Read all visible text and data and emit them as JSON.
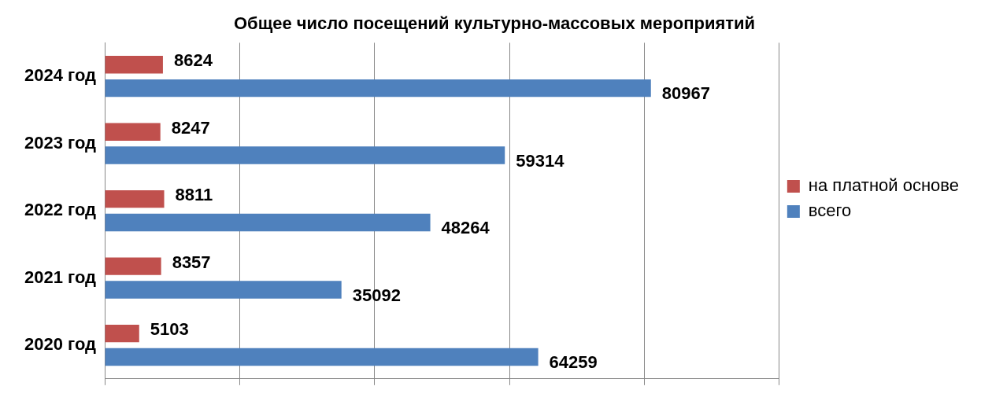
{
  "chart_data": {
    "type": "bar",
    "title": "Общее число посещений культурно-массовых мероприятий",
    "orientation": "horizontal",
    "categories": [
      "2024 год",
      "2023 год",
      "2022 год",
      "2021 год",
      "2020 год"
    ],
    "series": [
      {
        "name": "на платной основе",
        "color": "#c0504d",
        "values": [
          8624,
          8247,
          8811,
          8357,
          5103
        ]
      },
      {
        "name": "всего",
        "color": "#4f81bd",
        "values": [
          80967,
          59314,
          48264,
          35092,
          64259
        ]
      }
    ],
    "xlim": [
      0,
      100000
    ],
    "xticks": [
      {
        "value": 0,
        "label": null
      },
      {
        "value": 20000,
        "label": null
      },
      {
        "value": 40000,
        "label": null
      },
      {
        "value": 60000,
        "label": null
      },
      {
        "value": 80000,
        "label": null
      },
      {
        "value": 100000,
        "label": null
      }
    ],
    "tick_labels": "y",
    "grid": "x",
    "legend": "right",
    "data_labels": true
  }
}
